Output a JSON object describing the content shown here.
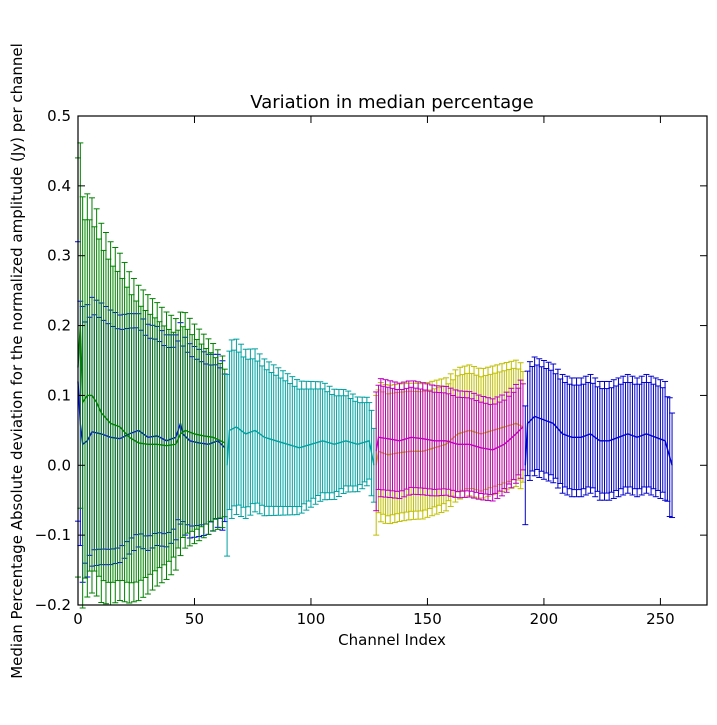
{
  "chart_data": {
    "type": "line",
    "title": "Variation in median percentage",
    "xlabel": "Channel Index",
    "ylabel": "Median Percentage Absolute deviation for the normalized amplitude (Jy) per channel",
    "xlim": [
      0,
      270
    ],
    "ylim": [
      -0.2,
      0.5
    ],
    "x_ticks": [
      0,
      50,
      100,
      150,
      200,
      250
    ],
    "y_ticks": [
      -0.2,
      -0.1,
      0.0,
      0.1,
      0.2,
      0.3,
      0.4,
      0.5
    ],
    "x_tick_labels": [
      "0",
      "50",
      "100",
      "150",
      "200",
      "250"
    ],
    "y_tick_labels": [
      "−0.2",
      "−0.1",
      "0.0",
      "0.1",
      "0.2",
      "0.3",
      "0.4",
      "0.5"
    ],
    "grid": false,
    "legend": "none",
    "error_bars": true,
    "series": [
      {
        "color": "#0000ff",
        "x_range": [
          0,
          63
        ],
        "points": [
          [
            0,
            0.12
          ],
          [
            1,
            0.06
          ],
          [
            2,
            0.03
          ],
          [
            4,
            0.035
          ],
          [
            6,
            0.048
          ],
          [
            10,
            0.045
          ],
          [
            14,
            0.04
          ],
          [
            18,
            0.038
          ],
          [
            22,
            0.045
          ],
          [
            26,
            0.05
          ],
          [
            30,
            0.04
          ],
          [
            34,
            0.042
          ],
          [
            38,
            0.035
          ],
          [
            42,
            0.04
          ],
          [
            44,
            0.06
          ],
          [
            45,
            0.045
          ],
          [
            48,
            0.035
          ],
          [
            52,
            0.032
          ],
          [
            56,
            0.03
          ],
          [
            60,
            0.035
          ],
          [
            63,
            0.025
          ]
        ],
        "err_start": 0.2,
        "err_end": 0.12
      },
      {
        "color": "#008000",
        "x_range": [
          0,
          63
        ],
        "points": [
          [
            0,
            0.14
          ],
          [
            1,
            0.2
          ],
          [
            2,
            0.09
          ],
          [
            4,
            0.1
          ],
          [
            6,
            0.1
          ],
          [
            8,
            0.09
          ],
          [
            10,
            0.075
          ],
          [
            14,
            0.06
          ],
          [
            18,
            0.055
          ],
          [
            22,
            0.04
          ],
          [
            26,
            0.032
          ],
          [
            30,
            0.03
          ],
          [
            34,
            0.03
          ],
          [
            38,
            0.028
          ],
          [
            42,
            0.03
          ],
          [
            44,
            0.045
          ],
          [
            46,
            0.05
          ],
          [
            50,
            0.045
          ],
          [
            54,
            0.042
          ],
          [
            58,
            0.04
          ],
          [
            63,
            0.032
          ]
        ],
        "err_start": 0.3,
        "err_end": 0.12
      },
      {
        "color": "#00a0a0",
        "x_range": [
          64,
          127
        ],
        "points": [
          [
            64,
            0.0
          ],
          [
            65,
            0.05
          ],
          [
            68,
            0.055
          ],
          [
            72,
            0.045
          ],
          [
            76,
            0.05
          ],
          [
            80,
            0.04
          ],
          [
            85,
            0.035
          ],
          [
            90,
            0.03
          ],
          [
            95,
            0.025
          ],
          [
            100,
            0.03
          ],
          [
            105,
            0.035
          ],
          [
            110,
            0.03
          ],
          [
            115,
            0.035
          ],
          [
            120,
            0.03
          ],
          [
            125,
            0.035
          ],
          [
            127,
            0.0
          ]
        ],
        "err_start": 0.13,
        "err_end": 0.06
      },
      {
        "color": "#bfbf00",
        "x_range": [
          128,
          191
        ],
        "points": [
          [
            128,
            0.0
          ],
          [
            129,
            0.02
          ],
          [
            133,
            0.015
          ],
          [
            138,
            0.018
          ],
          [
            143,
            0.02
          ],
          [
            148,
            0.02
          ],
          [
            153,
            0.025
          ],
          [
            158,
            0.03
          ],
          [
            163,
            0.045
          ],
          [
            168,
            0.05
          ],
          [
            173,
            0.045
          ],
          [
            178,
            0.05
          ],
          [
            183,
            0.055
          ],
          [
            188,
            0.06
          ],
          [
            191,
            0.055
          ]
        ],
        "err_start": 0.1,
        "err_end": 0.09
      },
      {
        "color": "#bf00bf",
        "x_range": [
          128,
          191
        ],
        "points": [
          [
            128,
            0.02
          ],
          [
            129,
            0.04
          ],
          [
            133,
            0.038
          ],
          [
            138,
            0.035
          ],
          [
            143,
            0.04
          ],
          [
            148,
            0.038
          ],
          [
            153,
            0.035
          ],
          [
            158,
            0.035
          ],
          [
            163,
            0.03
          ],
          [
            168,
            0.03
          ],
          [
            173,
            0.025
          ],
          [
            178,
            0.022
          ],
          [
            183,
            0.03
          ],
          [
            188,
            0.045
          ],
          [
            191,
            0.055
          ]
        ],
        "err_start": 0.085,
        "err_end": 0.07
      },
      {
        "color": "#0000cc",
        "x_range": [
          192,
          255
        ],
        "points": [
          [
            192,
            0.0
          ],
          [
            193,
            0.06
          ],
          [
            196,
            0.07
          ],
          [
            200,
            0.065
          ],
          [
            204,
            0.06
          ],
          [
            208,
            0.045
          ],
          [
            212,
            0.04
          ],
          [
            216,
            0.04
          ],
          [
            220,
            0.045
          ],
          [
            224,
            0.035
          ],
          [
            228,
            0.035
          ],
          [
            232,
            0.04
          ],
          [
            236,
            0.045
          ],
          [
            240,
            0.04
          ],
          [
            244,
            0.045
          ],
          [
            248,
            0.04
          ],
          [
            252,
            0.035
          ],
          [
            255,
            0.0
          ]
        ],
        "err_start": 0.085,
        "err_end": 0.085
      }
    ]
  }
}
